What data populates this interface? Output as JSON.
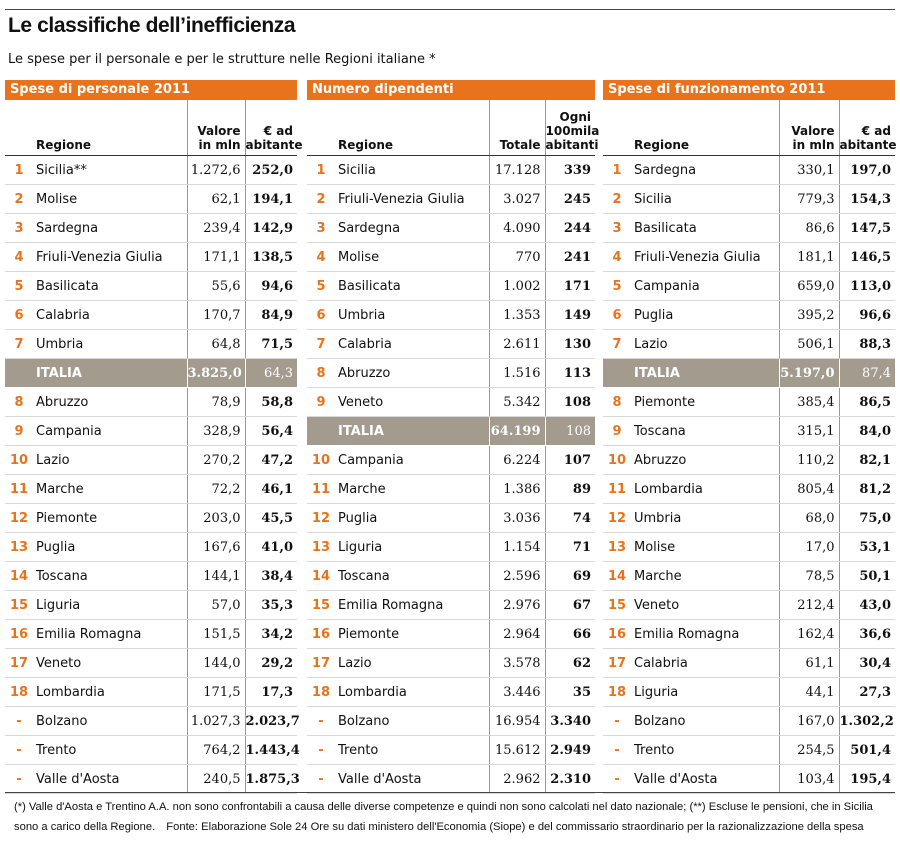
{
  "title": "Le classifiche dell’inefficienza",
  "subtitle": "Le spese per il personale e per le strutture nelle Regioni italiane *",
  "colors": {
    "accent": "#e8731c",
    "italia_bg": "#a39b8d"
  },
  "footnote": "(*) Valle d'Aosta e Trentino A.A. non sono confrontabili a causa delle diverse competenze e quindi non sono calcolati nel dato nazionale; (**) Escluse le pensioni, che in Sicilia sono a carico della Regione.",
  "source": "Fonte: Elaborazione Sole 24 Ore su dati ministero dell'Economia (Siope) e del commissario straordinario per la razionalizzazione della spesa",
  "chart_data": [
    {
      "type": "table",
      "title": "Spese di personale 2011",
      "col_regione": "Regione",
      "col_v1_a": "Valore",
      "col_v1_b": "in mln",
      "col_v2_a": "€ ad",
      "col_v2_b": "abitante",
      "rows": [
        {
          "rank": "1",
          "name": "Sicilia**",
          "v1": "1.272,6",
          "v2": "252,0"
        },
        {
          "rank": "2",
          "name": "Molise",
          "v1": "62,1",
          "v2": "194,1"
        },
        {
          "rank": "3",
          "name": "Sardegna",
          "v1": "239,4",
          "v2": "142,9"
        },
        {
          "rank": "4",
          "name": "Friuli-Venezia Giulia",
          "v1": "171,1",
          "v2": "138,5"
        },
        {
          "rank": "5",
          "name": "Basilicata",
          "v1": "55,6",
          "v2": "94,6"
        },
        {
          "rank": "6",
          "name": "Calabria",
          "v1": "170,7",
          "v2": "84,9"
        },
        {
          "rank": "7",
          "name": "Umbria",
          "v1": "64,8",
          "v2": "71,5"
        },
        {
          "rank": "",
          "name": "ITALIA",
          "v1": "3.825,0",
          "v2": "64,3",
          "italia": true
        },
        {
          "rank": "8",
          "name": "Abruzzo",
          "v1": "78,9",
          "v2": "58,8"
        },
        {
          "rank": "9",
          "name": "Campania",
          "v1": "328,9",
          "v2": "56,4"
        },
        {
          "rank": "10",
          "name": "Lazio",
          "v1": "270,2",
          "v2": "47,2"
        },
        {
          "rank": "11",
          "name": "Marche",
          "v1": "72,2",
          "v2": "46,1"
        },
        {
          "rank": "12",
          "name": "Piemonte",
          "v1": "203,0",
          "v2": "45,5"
        },
        {
          "rank": "13",
          "name": "Puglia",
          "v1": "167,6",
          "v2": "41,0"
        },
        {
          "rank": "14",
          "name": "Toscana",
          "v1": "144,1",
          "v2": "38,4"
        },
        {
          "rank": "15",
          "name": "Liguria",
          "v1": "57,0",
          "v2": "35,3"
        },
        {
          "rank": "16",
          "name": "Emilia Romagna",
          "v1": "151,5",
          "v2": "34,2"
        },
        {
          "rank": "17",
          "name": "Veneto",
          "v1": "144,0",
          "v2": "29,2"
        },
        {
          "rank": "18",
          "name": "Lombardia",
          "v1": "171,5",
          "v2": "17,3"
        },
        {
          "rank": "-",
          "name": "Bolzano",
          "v1": "1.027,3",
          "v2": "2.023,7"
        },
        {
          "rank": "-",
          "name": "Trento",
          "v1": "764,2",
          "v2": "1.443,4"
        },
        {
          "rank": "-",
          "name": "Valle d'Aosta",
          "v1": "240,5",
          "v2": "1.875,3"
        }
      ]
    },
    {
      "type": "table",
      "title": "Numero dipendenti",
      "col_regione": "Regione",
      "col_v1_a": "",
      "col_v1_b": "Totale",
      "col_v2_top": "Ogni",
      "col_v2_a": "100mila",
      "col_v2_b": "abitanti",
      "rows": [
        {
          "rank": "1",
          "name": "Sicilia",
          "v1": "17.128",
          "v2": "339"
        },
        {
          "rank": "2",
          "name": "Friuli-Venezia Giulia",
          "v1": "3.027",
          "v2": "245"
        },
        {
          "rank": "3",
          "name": "Sardegna",
          "v1": "4.090",
          "v2": "244"
        },
        {
          "rank": "4",
          "name": "Molise",
          "v1": "770",
          "v2": "241"
        },
        {
          "rank": "5",
          "name": "Basilicata",
          "v1": "1.002",
          "v2": "171"
        },
        {
          "rank": "6",
          "name": "Umbria",
          "v1": "1.353",
          "v2": "149"
        },
        {
          "rank": "7",
          "name": "Calabria",
          "v1": "2.611",
          "v2": "130"
        },
        {
          "rank": "8",
          "name": "Abruzzo",
          "v1": "1.516",
          "v2": "113"
        },
        {
          "rank": "9",
          "name": "Veneto",
          "v1": "5.342",
          "v2": "108"
        },
        {
          "rank": "",
          "name": "ITALIA",
          "v1": "64.199",
          "v2": "108",
          "italia": true
        },
        {
          "rank": "10",
          "name": "Campania",
          "v1": "6.224",
          "v2": "107"
        },
        {
          "rank": "11",
          "name": "Marche",
          "v1": "1.386",
          "v2": "89"
        },
        {
          "rank": "12",
          "name": "Puglia",
          "v1": "3.036",
          "v2": "74"
        },
        {
          "rank": "13",
          "name": "Liguria",
          "v1": "1.154",
          "v2": "71"
        },
        {
          "rank": "14",
          "name": "Toscana",
          "v1": "2.596",
          "v2": "69"
        },
        {
          "rank": "15",
          "name": "Emilia Romagna",
          "v1": "2.976",
          "v2": "67"
        },
        {
          "rank": "16",
          "name": "Piemonte",
          "v1": "2.964",
          "v2": "66"
        },
        {
          "rank": "17",
          "name": "Lazio",
          "v1": "3.578",
          "v2": "62"
        },
        {
          "rank": "18",
          "name": "Lombardia",
          "v1": "3.446",
          "v2": "35"
        },
        {
          "rank": "-",
          "name": "Bolzano",
          "v1": "16.954",
          "v2": "3.340"
        },
        {
          "rank": "-",
          "name": "Trento",
          "v1": "15.612",
          "v2": "2.949"
        },
        {
          "rank": "-",
          "name": "Valle d'Aosta",
          "v1": "2.962",
          "v2": "2.310"
        }
      ]
    },
    {
      "type": "table",
      "title": "Spese di funzionamento 2011",
      "col_regione": "Regione",
      "col_v1_a": "Valore",
      "col_v1_b": "in mln",
      "col_v2_a": "€ ad",
      "col_v2_b": "abitante",
      "rows": [
        {
          "rank": "1",
          "name": "Sardegna",
          "v1": "330,1",
          "v2": "197,0"
        },
        {
          "rank": "2",
          "name": "Sicilia",
          "v1": "779,3",
          "v2": "154,3"
        },
        {
          "rank": "3",
          "name": "Basilicata",
          "v1": "86,6",
          "v2": "147,5"
        },
        {
          "rank": "4",
          "name": "Friuli-Venezia Giulia",
          "v1": "181,1",
          "v2": "146,5"
        },
        {
          "rank": "5",
          "name": "Campania",
          "v1": "659,0",
          "v2": "113,0"
        },
        {
          "rank": "6",
          "name": "Puglia",
          "v1": "395,2",
          "v2": "96,6"
        },
        {
          "rank": "7",
          "name": "Lazio",
          "v1": "506,1",
          "v2": "88,3"
        },
        {
          "rank": "",
          "name": "ITALIA",
          "v1": "5.197,0",
          "v2": "87,4",
          "italia": true
        },
        {
          "rank": "8",
          "name": "Piemonte",
          "v1": "385,4",
          "v2": "86,5"
        },
        {
          "rank": "9",
          "name": "Toscana",
          "v1": "315,1",
          "v2": "84,0"
        },
        {
          "rank": "10",
          "name": "Abruzzo",
          "v1": "110,2",
          "v2": "82,1"
        },
        {
          "rank": "11",
          "name": "Lombardia",
          "v1": "805,4",
          "v2": "81,2"
        },
        {
          "rank": "12",
          "name": "Umbria",
          "v1": "68,0",
          "v2": "75,0"
        },
        {
          "rank": "13",
          "name": "Molise",
          "v1": "17,0",
          "v2": "53,1"
        },
        {
          "rank": "14",
          "name": "Marche",
          "v1": "78,5",
          "v2": "50,1"
        },
        {
          "rank": "15",
          "name": "Veneto",
          "v1": "212,4",
          "v2": "43,0"
        },
        {
          "rank": "16",
          "name": "Emilia Romagna",
          "v1": "162,4",
          "v2": "36,6"
        },
        {
          "rank": "17",
          "name": "Calabria",
          "v1": "61,1",
          "v2": "30,4"
        },
        {
          "rank": "18",
          "name": "Liguria",
          "v1": "44,1",
          "v2": "27,3"
        },
        {
          "rank": "-",
          "name": "Bolzano",
          "v1": "167,0",
          "v2": "1.302,2"
        },
        {
          "rank": "-",
          "name": "Trento",
          "v1": "254,5",
          "v2": "501,4"
        },
        {
          "rank": "-",
          "name": "Valle d'Aosta",
          "v1": "103,4",
          "v2": "195,4"
        }
      ]
    }
  ]
}
